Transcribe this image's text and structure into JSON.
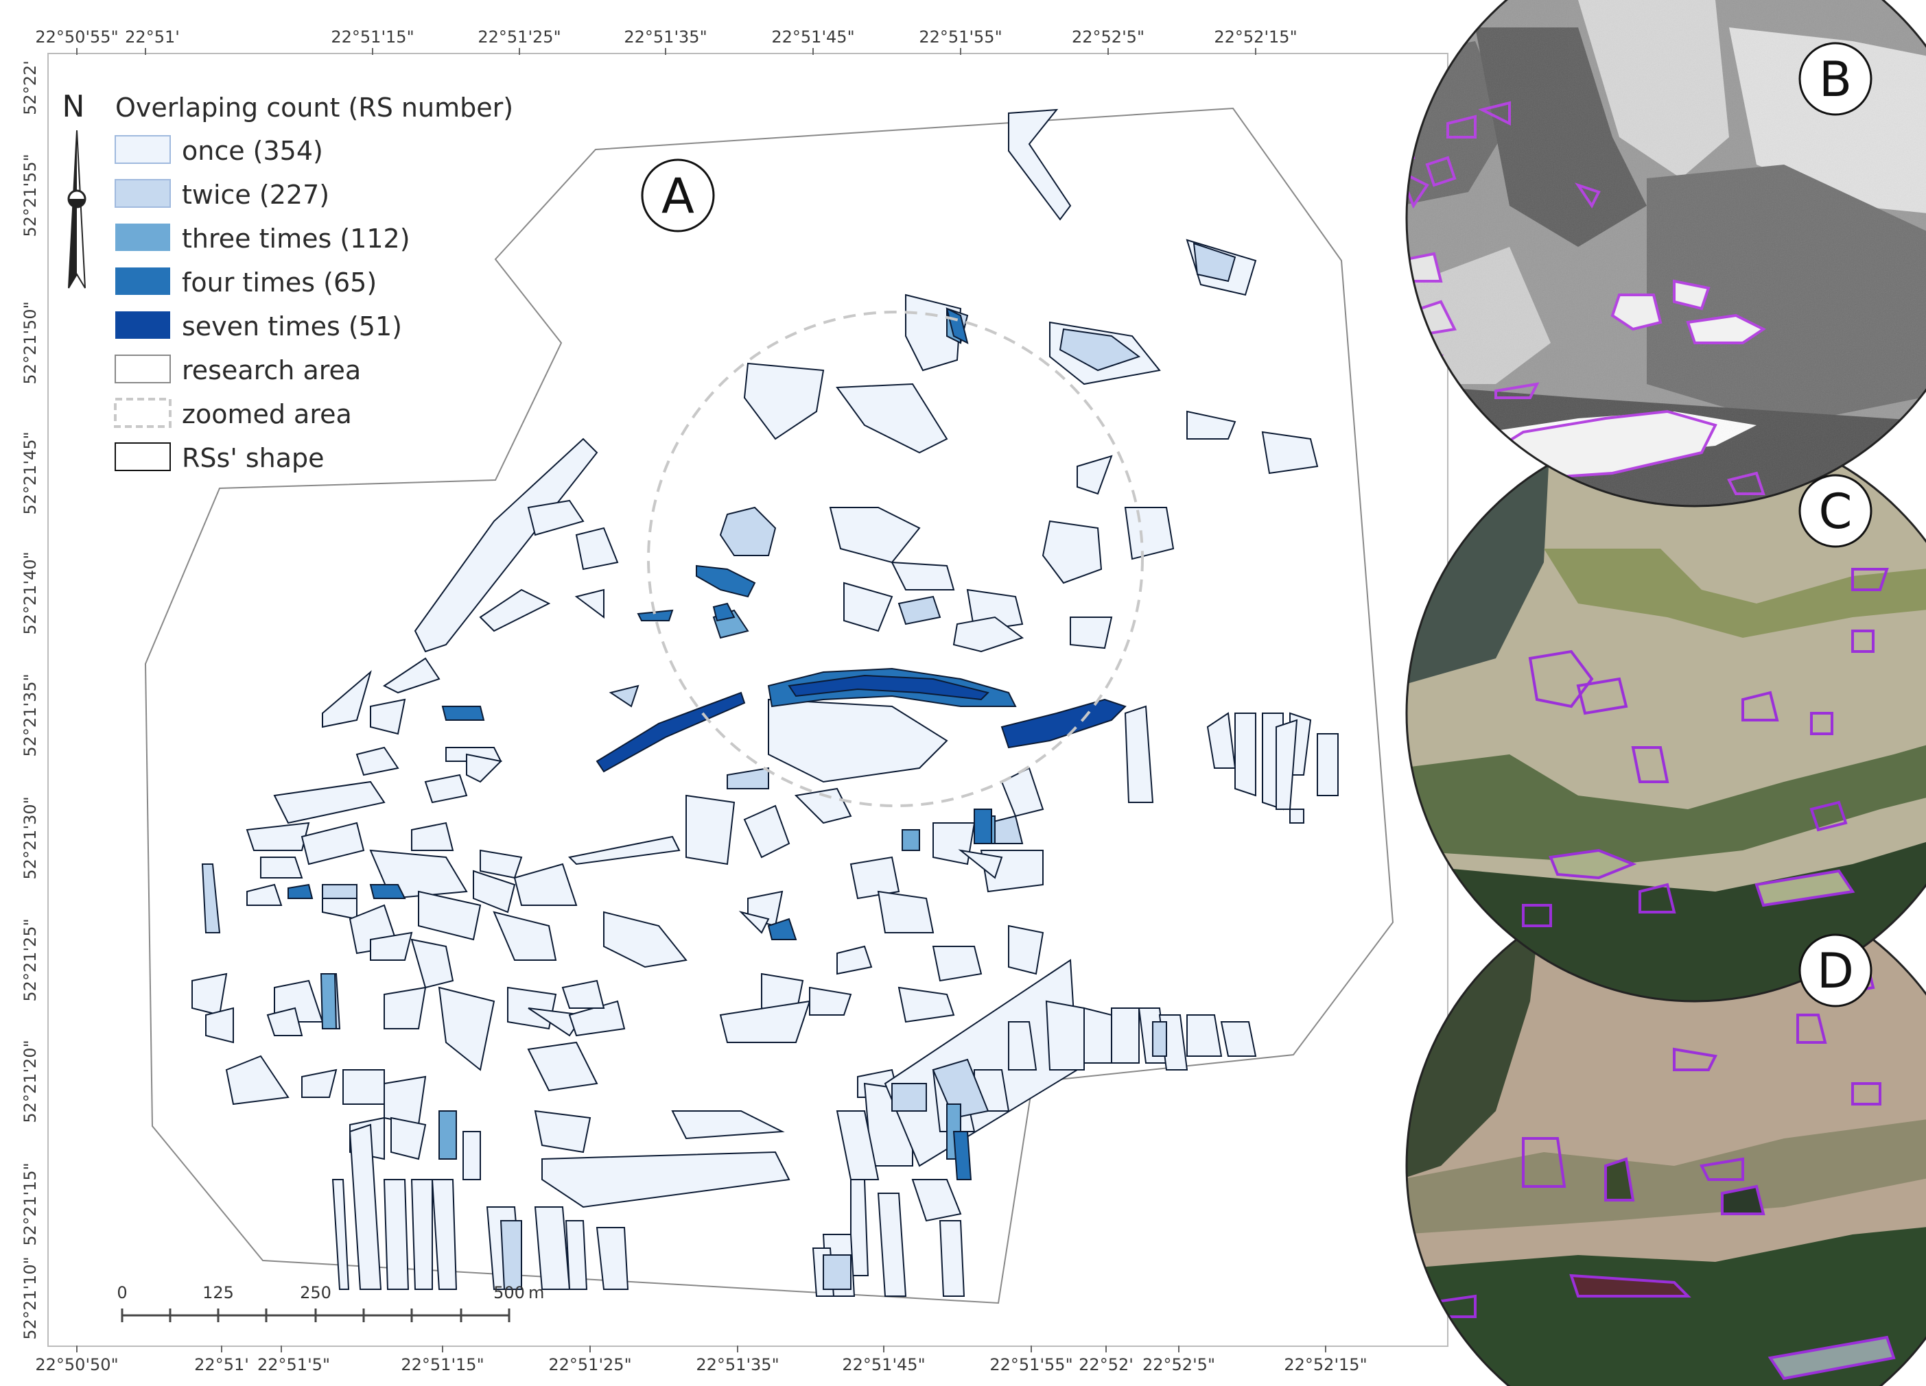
{
  "legend": {
    "title": "Overlaping count (RS number)",
    "items": [
      {
        "label": "once (354)",
        "color": "#eef4fc",
        "stroke": "#9fb9de"
      },
      {
        "label": "twice (227)",
        "color": "#c6d9ef",
        "stroke": "#9fb9de"
      },
      {
        "label": "three times (112)",
        "color": "#6eaad6",
        "stroke": "#6eaad6"
      },
      {
        "label": "four times (65)",
        "color": "#2573b8",
        "stroke": "#2573b8"
      },
      {
        "label": "seven times (51)",
        "color": "#0d47a1",
        "stroke": "#0d47a1"
      },
      {
        "label": "research area",
        "color": "#ffffff",
        "stroke": "#888888"
      },
      {
        "label": "zoomed area",
        "color": "#ffffff",
        "stroke": "#c8c8c8"
      },
      {
        "label": "RSs' shape",
        "color": "#ffffff",
        "stroke": "#111111"
      }
    ]
  },
  "north_label": "N",
  "panels": {
    "a": "A",
    "b": "B",
    "c": "C",
    "d": "D"
  },
  "top_axis": [
    "22°50'55\"",
    "22°51'",
    "22°51'15\"",
    "22°51'25\"",
    "22°51'35\"",
    "22°51'45\"",
    "22°51'55\"",
    "22°52'5\"",
    "22°52'15\""
  ],
  "bottom_axis": [
    "22°50'50\"",
    "22°51'",
    "22°51'5\"",
    "22°51'15\"",
    "22°51'25\"",
    "22°51'35\"",
    "22°51'45\"",
    "22°51'55\"",
    "22°52'",
    "22°52'5\"",
    "22°52'15\""
  ],
  "left_axis": [
    "52°22'",
    "52°21'55\"",
    "52°21'50\"",
    "52°21'45\"",
    "52°21'40\"",
    "52°21'35\"",
    "52°21'30\"",
    "52°21'25\"",
    "52°21'20\"",
    "52°21'15\"",
    "52°21'10\""
  ],
  "scale_bar": {
    "labels": [
      "0",
      "125",
      "250",
      "500"
    ],
    "unit": "m"
  },
  "colors": {
    "research_area": "#888888",
    "outline": "#0b1a33",
    "zoom_circle": "#c8c8c8",
    "inset_outline": "#9b30d9"
  }
}
